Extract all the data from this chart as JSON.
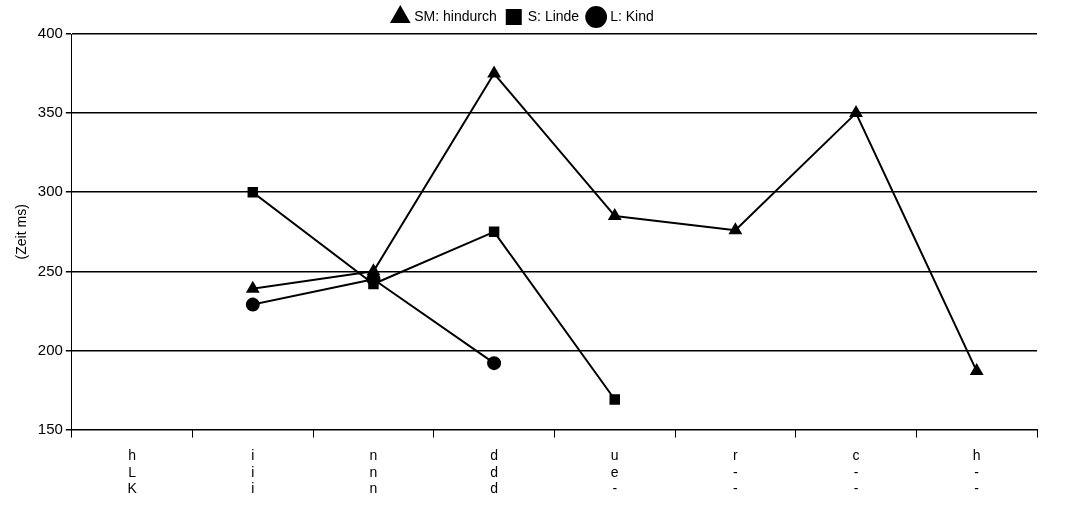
{
  "chart_data": {
    "type": "line",
    "ylabel": "(Zeit ms)",
    "categories": [
      "h\nL\nK",
      "i\ni\ni",
      "n\nn\nn",
      "d\nd\nd",
      "u\ne\n-",
      "r\n-\n-",
      "c\n-\n-",
      "h\n-\n-"
    ],
    "series": [
      {
        "name": "SM: hindurch",
        "color": "#000000",
        "marker": "triangle",
        "values": [
          null,
          239,
          250,
          375,
          285,
          276,
          350,
          187
        ]
      },
      {
        "name": "S: Linde",
        "color": "#000000",
        "marker": "square",
        "values": [
          null,
          300,
          242,
          275,
          169,
          null,
          null,
          null
        ]
      },
      {
        "name": "L: Kind",
        "color": "#000000",
        "marker": "circle",
        "values": [
          null,
          229,
          245,
          192,
          null,
          null,
          null,
          null
        ]
      }
    ],
    "ylim": [
      150,
      400
    ],
    "yticks": [
      150,
      200,
      250,
      300,
      350,
      400
    ],
    "grid": "y",
    "legend": "top"
  }
}
